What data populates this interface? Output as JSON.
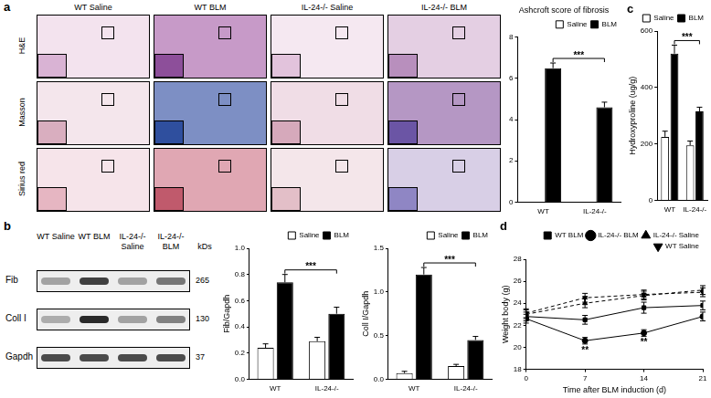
{
  "micrographs": {
    "panel": "a",
    "columns": [
      "WT Saline",
      "WT BLM",
      "IL-24-/- Saline",
      "IL-24-/- BLM"
    ],
    "rows": [
      "H&E",
      "Masson",
      "Sirius red"
    ]
  },
  "blot": {
    "panel": "b",
    "lanes": [
      "WT Saline",
      "WT BLM",
      "IL-24-/- Saline",
      "IL-24-/- BLM"
    ],
    "unit": "kDs",
    "rows": [
      {
        "name": "Fib",
        "kd": 265
      },
      {
        "name": "Coll I",
        "kd": 130
      },
      {
        "name": "Gapdh",
        "kd": 37
      }
    ]
  },
  "chart_data": [
    {
      "type": "bar",
      "title": "Ashcroft score of fibrosis",
      "categories": [
        "WT",
        "IL-24-/-"
      ],
      "series": [
        {
          "name": "Saline",
          "color": "#ffffff",
          "values": [
            null,
            null
          ],
          "errors": [
            null,
            null
          ]
        },
        {
          "name": "BLM",
          "color": "#000000",
          "values": [
            6.5,
            4.6
          ],
          "errors": [
            0.25,
            0.25
          ]
        }
      ],
      "ylim": [
        0,
        8
      ],
      "yticks": [
        0,
        2,
        4,
        6,
        8
      ],
      "grid": false,
      "legend": "top right",
      "annotations": [
        {
          "text": "***",
          "series": "BLM",
          "from": "WT",
          "to": "IL-24-/-"
        }
      ]
    },
    {
      "type": "bar",
      "panel": "c",
      "y_label": "Hydroxyproline (ug/g)",
      "categories": [
        "WT",
        "IL-24-/-"
      ],
      "series": [
        {
          "name": "Saline",
          "color": "#ffffff",
          "values": [
            225,
            195
          ],
          "errors": [
            20,
            15
          ]
        },
        {
          "name": "BLM",
          "color": "#000000",
          "values": [
            520,
            315
          ],
          "errors": [
            30,
            15
          ]
        }
      ],
      "ylim": [
        0,
        600
      ],
      "yticks": [
        0,
        200,
        400,
        600
      ],
      "grid": false,
      "legend": "top right",
      "annotations": [
        {
          "text": "***",
          "series": "BLM",
          "from": "WT",
          "to": "IL-24-/-"
        }
      ]
    },
    {
      "type": "bar",
      "y_label": "Fib/Gapdh",
      "categories": [
        "WT",
        "IL-24-/-"
      ],
      "series": [
        {
          "name": "Saline",
          "color": "#ffffff",
          "values": [
            0.24,
            0.29
          ],
          "errors": [
            0.03,
            0.03
          ]
        },
        {
          "name": "BLM",
          "color": "#000000",
          "values": [
            0.74,
            0.5
          ],
          "errors": [
            0.06,
            0.05
          ]
        }
      ],
      "ylim": [
        0,
        1
      ],
      "yticks": [
        {
          "value": 0,
          "label": "0.0"
        },
        0.2,
        0.4,
        0.6,
        0.8,
        {
          "value": 1,
          "label": "1.0"
        }
      ],
      "grid": false,
      "legend": "top right",
      "annotations": [
        {
          "text": "***",
          "series": "BLM",
          "from": "WT",
          "to": "IL-24-/-"
        }
      ]
    },
    {
      "type": "bar",
      "y_label": "Coll I/Gapdh",
      "categories": [
        "WT",
        "IL-24-/-"
      ],
      "series": [
        {
          "name": "Saline",
          "color": "#ffffff",
          "values": [
            0.07,
            0.15
          ],
          "errors": [
            0.02,
            0.02
          ]
        },
        {
          "name": "BLM",
          "color": "#000000",
          "values": [
            1.2,
            0.45
          ],
          "errors": [
            0.08,
            0.04
          ]
        }
      ],
      "ylim": [
        0,
        1.5
      ],
      "yticks": [
        {
          "value": 0,
          "label": "0.0"
        },
        0.5,
        {
          "value": 1,
          "label": "1.0"
        },
        1.5
      ],
      "grid": false,
      "legend": "top right",
      "annotations": [
        {
          "text": "***",
          "series": "BLM",
          "from": "WT",
          "to": "IL-24-/-"
        }
      ]
    },
    {
      "type": "line",
      "panel": "d",
      "x_label": "Time after BLM induction (d)",
      "y_label": "Weight body (g)",
      "x": [
        0,
        7,
        14,
        21
      ],
      "series": [
        {
          "name": "WT BLM",
          "color": "#000000",
          "marker": "square",
          "line_style": "solid",
          "values": [
            22.8,
            22.5,
            23.6,
            23.8
          ],
          "errors": [
            0.4,
            0.4,
            0.5,
            0.4
          ]
        },
        {
          "name": "IL-24-/- BLM",
          "color": "#000000",
          "marker": "circle",
          "line_style": "solid",
          "values": [
            22.6,
            20.6,
            21.3,
            22.8
          ],
          "errors": [
            0.4,
            0.3,
            0.3,
            0.4
          ]
        },
        {
          "name": "IL-24-/- Saline",
          "color": "#000000",
          "marker": "triangle-up",
          "line_style": "dashed",
          "values": [
            23.0,
            24.0,
            24.7,
            25.2
          ],
          "errors": [
            0.4,
            0.4,
            0.4,
            0.4
          ]
        },
        {
          "name": "WT Saline",
          "color": "#000000",
          "marker": "triangle-down",
          "line_style": "dashed",
          "values": [
            23.1,
            24.5,
            24.8,
            25.0
          ],
          "errors": [
            0.4,
            0.4,
            0.4,
            0.4
          ]
        }
      ],
      "xlim": [
        0,
        21
      ],
      "xticks": [
        0,
        7,
        14,
        21
      ],
      "ylim": [
        18,
        28
      ],
      "yticks": [
        18,
        20,
        22,
        24,
        26,
        28
      ],
      "grid": false,
      "legend": "top right",
      "annotations": [
        {
          "text": "**",
          "series": "IL-24-/- BLM",
          "x": 7
        },
        {
          "text": "**",
          "series": "IL-24-/- BLM",
          "x": 14
        }
      ]
    }
  ]
}
